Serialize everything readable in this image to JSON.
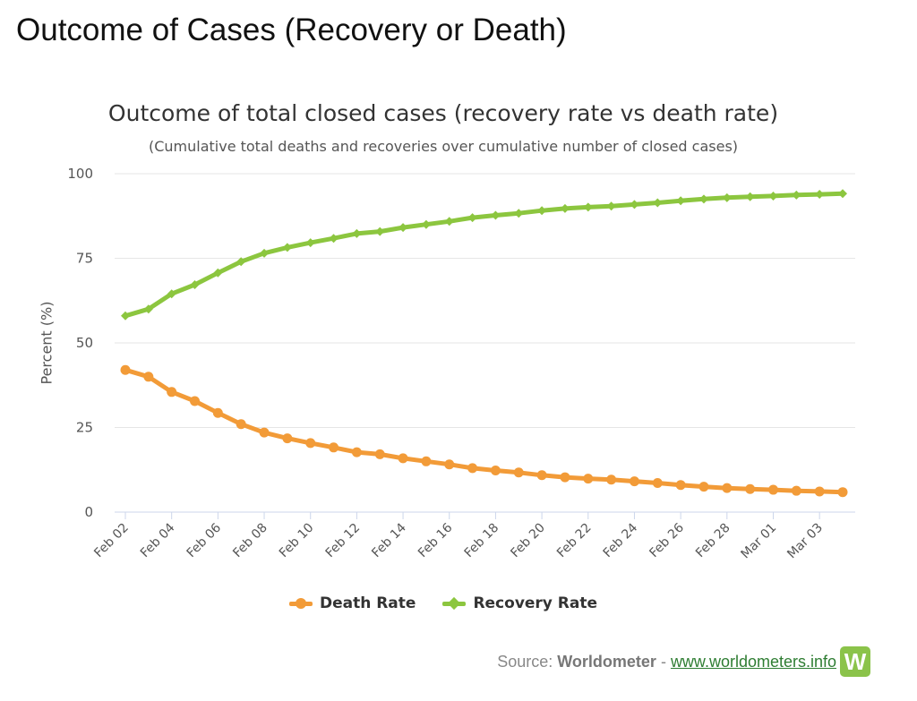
{
  "page": {
    "title": "Outcome of Cases (Recovery or Death)"
  },
  "chart_data": {
    "type": "line",
    "title": "Outcome of total closed cases (recovery rate vs death rate)",
    "subtitle": "(Cumulative total deaths and recoveries over cumulative number of closed cases)",
    "xlabel": "",
    "ylabel": "Percent (%)",
    "ylim": [
      0,
      100
    ],
    "yticks": [
      0,
      25,
      50,
      75,
      100
    ],
    "grid": true,
    "legend_position": "bottom-center",
    "categories": [
      "Feb 02",
      "Feb 03",
      "Feb 04",
      "Feb 05",
      "Feb 06",
      "Feb 07",
      "Feb 08",
      "Feb 09",
      "Feb 10",
      "Feb 11",
      "Feb 12",
      "Feb 13",
      "Feb 14",
      "Feb 15",
      "Feb 16",
      "Feb 17",
      "Feb 18",
      "Feb 19",
      "Feb 20",
      "Feb 21",
      "Feb 22",
      "Feb 23",
      "Feb 24",
      "Feb 25",
      "Feb 26",
      "Feb 27",
      "Feb 28",
      "Feb 29",
      "Mar 01",
      "Mar 02",
      "Mar 03",
      "Mar 04"
    ],
    "tick_labels": [
      "Feb 02",
      "Feb 04",
      "Feb 06",
      "Feb 08",
      "Feb 10",
      "Feb 12",
      "Feb 14",
      "Feb 16",
      "Feb 18",
      "Feb 20",
      "Feb 22",
      "Feb 24",
      "Feb 26",
      "Feb 28",
      "Mar 01",
      "Mar 03"
    ],
    "series": [
      {
        "name": "Death Rate",
        "color": "#f29b38",
        "marker": "circle",
        "values": [
          42,
          40,
          35.5,
          32.8,
          29.3,
          26,
          23.5,
          21.8,
          20.4,
          19.1,
          17.7,
          17.1,
          15.9,
          15,
          14.1,
          13,
          12.3,
          11.7,
          10.9,
          10.3,
          9.9,
          9.6,
          9.1,
          8.6,
          8,
          7.5,
          7.1,
          6.8,
          6.6,
          6.3,
          6.1,
          5.9
        ]
      },
      {
        "name": "Recovery Rate",
        "color": "#8cc63f",
        "marker": "diamond",
        "values": [
          58,
          60,
          64.5,
          67.2,
          70.7,
          74,
          76.5,
          78.2,
          79.6,
          80.9,
          82.3,
          82.9,
          84.1,
          85,
          85.9,
          87,
          87.7,
          88.3,
          89.1,
          89.7,
          90.1,
          90.4,
          90.9,
          91.4,
          92,
          92.5,
          92.9,
          93.2,
          93.4,
          93.7,
          93.9,
          94.1
        ]
      }
    ]
  },
  "source": {
    "prefix": "Source: ",
    "brand": "Worldometer",
    "separator": " - ",
    "link": "www.worldometers.info"
  },
  "logo": {
    "letter": "W",
    "color": "#8bc34a"
  }
}
